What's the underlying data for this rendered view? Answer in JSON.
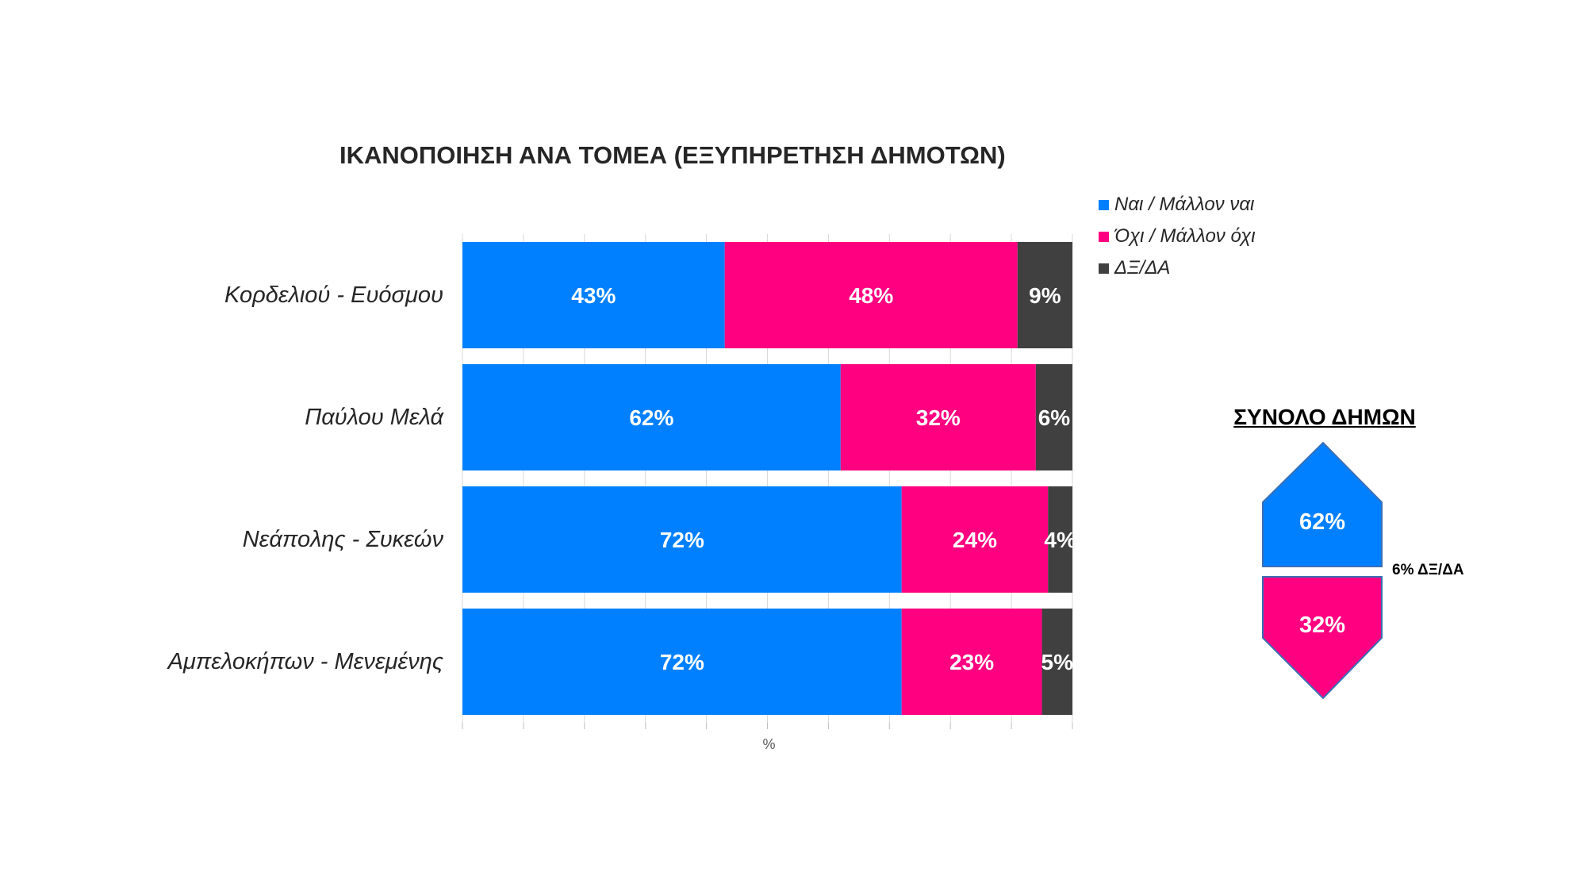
{
  "title": "ΙΚΑΝΟΠΟΙΗΣΗ ΑΝΑ ΤΟΜΕΑ (ΕΞΥΠΗΡΕΤΗΣΗ ΔΗΜΟΤΩΝ)",
  "colors": {
    "yes": "#0080FF",
    "no": "#FF0080",
    "dk": "#404040"
  },
  "chart_data": {
    "type": "bar",
    "orientation": "horizontal",
    "stacked": true,
    "categories": [
      "Κορδελιού - Ευόσμου",
      "Παύλου Μελά",
      "Νεάπολης - Συκεών",
      "Αμπελοκήπων - Μενεμένης"
    ],
    "series": [
      {
        "name": "Ναι / Μάλλον ναι",
        "values": [
          43,
          62,
          72,
          72
        ],
        "labels": [
          "43%",
          "62%",
          "72%",
          "72%"
        ]
      },
      {
        "name": "Όχι / Μάλλον όχι",
        "values": [
          48,
          32,
          24,
          23
        ],
        "labels": [
          "48%",
          "32%",
          "24%",
          "23%"
        ]
      },
      {
        "name": "ΔΞ/ΔΑ",
        "values": [
          9,
          6,
          4,
          5
        ],
        "labels": [
          "9%",
          "6%",
          "4%",
          "5%"
        ]
      }
    ],
    "xlabel": "%",
    "xlim": [
      0,
      100
    ],
    "grid": true,
    "legend": "top-right"
  },
  "totals": {
    "title": "ΣΥΝΟΛΟ ΔΗΜΩΝ",
    "yes": 62,
    "yes_label": "62%",
    "no": 32,
    "no_label": "32%",
    "dk_label": "6% ΔΞ/ΔΑ"
  }
}
